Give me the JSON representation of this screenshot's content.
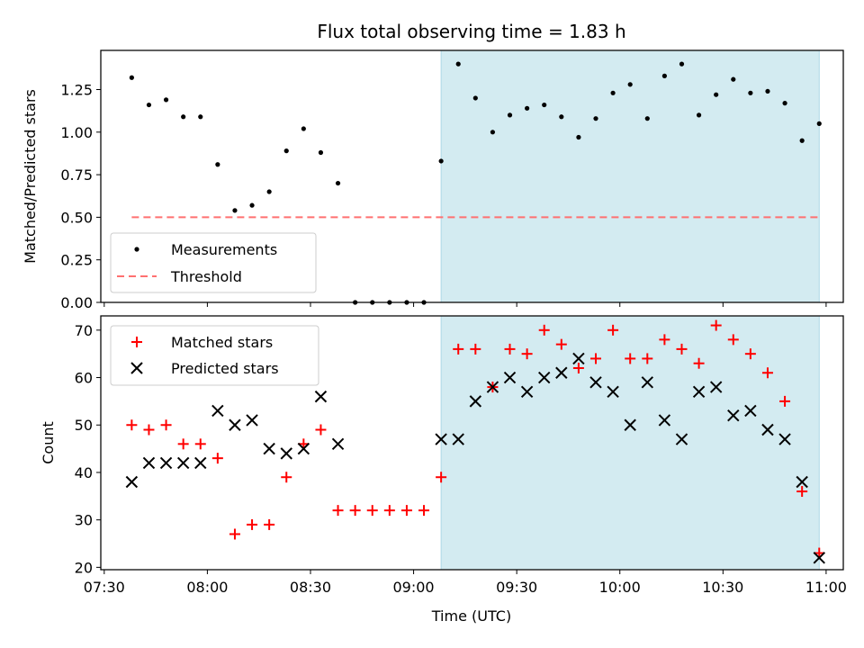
{
  "title": "Flux total observing time = 1.83 h",
  "chart_data": [
    {
      "type": "scatter",
      "panel": "top",
      "ylabel": "Matched/Predicted stars",
      "ylim": [
        0,
        1.48
      ],
      "yticks": [
        0.0,
        0.25,
        0.5,
        0.75,
        1.0,
        1.25
      ],
      "ytick_labels": [
        "0.00",
        "0.25",
        "0.50",
        "0.75",
        "1.00",
        "1.25"
      ],
      "legend_position": "lower-left",
      "shaded_interval": [
        "09:08",
        "10:58"
      ],
      "threshold": {
        "name": "Threshold",
        "value": 0.5,
        "x_start": "07:38",
        "x_end": "10:58",
        "color": "#ff7070"
      },
      "series": [
        {
          "name": "Measurements",
          "marker": "dot",
          "color": "#000000",
          "points": [
            [
              "07:38",
              1.32
            ],
            [
              "07:43",
              1.16
            ],
            [
              "07:48",
              1.19
            ],
            [
              "07:53",
              1.09
            ],
            [
              "07:58",
              1.09
            ],
            [
              "08:03",
              0.81
            ],
            [
              "08:08",
              0.54
            ],
            [
              "08:13",
              0.57
            ],
            [
              "08:18",
              0.65
            ],
            [
              "08:23",
              0.89
            ],
            [
              "08:28",
              1.02
            ],
            [
              "08:33",
              0.88
            ],
            [
              "08:38",
              0.7
            ],
            [
              "08:43",
              0.0
            ],
            [
              "08:48",
              0.0
            ],
            [
              "08:53",
              0.0
            ],
            [
              "08:58",
              0.0
            ],
            [
              "09:03",
              0.0
            ],
            [
              "09:08",
              0.83
            ],
            [
              "09:13",
              1.4
            ],
            [
              "09:18",
              1.2
            ],
            [
              "09:23",
              1.0
            ],
            [
              "09:28",
              1.1
            ],
            [
              "09:33",
              1.14
            ],
            [
              "09:38",
              1.16
            ],
            [
              "09:43",
              1.09
            ],
            [
              "09:48",
              0.97
            ],
            [
              "09:53",
              1.08
            ],
            [
              "09:58",
              1.23
            ],
            [
              "10:03",
              1.28
            ],
            [
              "10:08",
              1.08
            ],
            [
              "10:13",
              1.33
            ],
            [
              "10:18",
              1.4
            ],
            [
              "10:23",
              1.1
            ],
            [
              "10:28",
              1.22
            ],
            [
              "10:33",
              1.31
            ],
            [
              "10:38",
              1.23
            ],
            [
              "10:43",
              1.24
            ],
            [
              "10:48",
              1.17
            ],
            [
              "10:53",
              0.95
            ],
            [
              "10:58",
              1.05
            ]
          ]
        }
      ]
    },
    {
      "type": "scatter",
      "panel": "bottom",
      "xlabel": "Time (UTC)",
      "ylabel": "Count",
      "ylim": [
        19.5,
        73
      ],
      "yticks": [
        20,
        30,
        40,
        50,
        60,
        70
      ],
      "ytick_labels": [
        "20",
        "30",
        "40",
        "50",
        "60",
        "70"
      ],
      "xlim": [
        "07:29",
        "11:05"
      ],
      "xticks": [
        "07:30",
        "08:00",
        "08:30",
        "09:00",
        "09:30",
        "10:00",
        "10:30",
        "11:00"
      ],
      "xtick_labels": [
        "07:30",
        "08:00",
        "08:30",
        "09:00",
        "09:30",
        "10:00",
        "10:30",
        "11:00"
      ],
      "legend_position": "upper-left",
      "shaded_interval": [
        "09:08",
        "10:58"
      ],
      "series": [
        {
          "name": "Matched stars",
          "marker": "plus",
          "color": "#ff0000",
          "points": [
            [
              "07:38",
              50
            ],
            [
              "07:43",
              49
            ],
            [
              "07:48",
              50
            ],
            [
              "07:53",
              46
            ],
            [
              "07:58",
              46
            ],
            [
              "08:03",
              43
            ],
            [
              "08:08",
              27
            ],
            [
              "08:13",
              29
            ],
            [
              "08:18",
              29
            ],
            [
              "08:23",
              39
            ],
            [
              "08:28",
              46
            ],
            [
              "08:33",
              49
            ],
            [
              "08:38",
              32
            ],
            [
              "08:43",
              32
            ],
            [
              "08:48",
              32
            ],
            [
              "08:53",
              32
            ],
            [
              "08:58",
              32
            ],
            [
              "09:03",
              32
            ],
            [
              "09:08",
              39
            ],
            [
              "09:13",
              66
            ],
            [
              "09:18",
              66
            ],
            [
              "09:23",
              58
            ],
            [
              "09:28",
              66
            ],
            [
              "09:33",
              65
            ],
            [
              "09:38",
              70
            ],
            [
              "09:43",
              67
            ],
            [
              "09:48",
              62
            ],
            [
              "09:53",
              64
            ],
            [
              "09:58",
              70
            ],
            [
              "10:03",
              64
            ],
            [
              "10:08",
              64
            ],
            [
              "10:13",
              68
            ],
            [
              "10:18",
              66
            ],
            [
              "10:23",
              63
            ],
            [
              "10:28",
              71
            ],
            [
              "10:33",
              68
            ],
            [
              "10:38",
              65
            ],
            [
              "10:43",
              61
            ],
            [
              "10:48",
              55
            ],
            [
              "10:53",
              36
            ],
            [
              "10:58",
              23
            ]
          ]
        },
        {
          "name": "Predicted stars",
          "marker": "x",
          "color": "#000000",
          "points": [
            [
              "07:38",
              38
            ],
            [
              "07:43",
              42
            ],
            [
              "07:48",
              42
            ],
            [
              "07:53",
              42
            ],
            [
              "07:58",
              42
            ],
            [
              "08:03",
              53
            ],
            [
              "08:08",
              50
            ],
            [
              "08:13",
              51
            ],
            [
              "08:18",
              45
            ],
            [
              "08:23",
              44
            ],
            [
              "08:28",
              45
            ],
            [
              "08:33",
              56
            ],
            [
              "08:38",
              46
            ],
            [
              "09:08",
              47
            ],
            [
              "09:13",
              47
            ],
            [
              "09:18",
              55
            ],
            [
              "09:23",
              58
            ],
            [
              "09:28",
              60
            ],
            [
              "09:33",
              57
            ],
            [
              "09:38",
              60
            ],
            [
              "09:43",
              61
            ],
            [
              "09:48",
              64
            ],
            [
              "09:53",
              59
            ],
            [
              "09:58",
              57
            ],
            [
              "10:03",
              50
            ],
            [
              "10:08",
              59
            ],
            [
              "10:13",
              51
            ],
            [
              "10:18",
              47
            ],
            [
              "10:23",
              57
            ],
            [
              "10:28",
              58
            ],
            [
              "10:33",
              52
            ],
            [
              "10:38",
              53
            ],
            [
              "10:43",
              49
            ],
            [
              "10:48",
              47
            ],
            [
              "10:53",
              38
            ],
            [
              "10:58",
              22
            ]
          ]
        }
      ]
    }
  ],
  "colors": {
    "shade_fill": "#d3ebf1",
    "shade_edge": "#add8e6"
  }
}
